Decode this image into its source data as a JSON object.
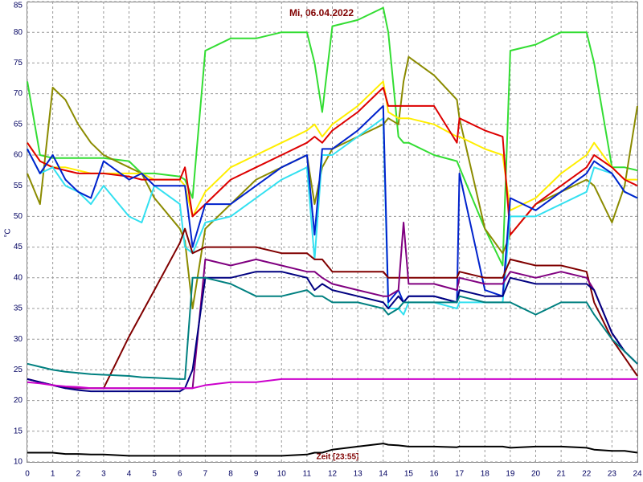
{
  "chart_data": {
    "type": "line",
    "title": "Mi, 06.04.2022",
    "y_label": "°C",
    "annotation": "Zeit [23:55]",
    "x": [
      0,
      0.5,
      1,
      1.5,
      2,
      2.5,
      3,
      4,
      4.5,
      5,
      6,
      6.2,
      6.5,
      7,
      8,
      9,
      10,
      11,
      11.3,
      11.6,
      12,
      13,
      14,
      14.2,
      14.6,
      14.8,
      15,
      16,
      16.9,
      17,
      18,
      18.7,
      19,
      20,
      21,
      22,
      22.3,
      23,
      23.5,
      24
    ],
    "xlim": [
      0,
      24
    ],
    "xticks": [
      0,
      1,
      2,
      3,
      4,
      5,
      6,
      7,
      8,
      9,
      10,
      11,
      12,
      13,
      14,
      15,
      16,
      17,
      18,
      19,
      20,
      21,
      22,
      23,
      24
    ],
    "ylim": [
      10,
      85
    ],
    "yticks": [
      10,
      15,
      20,
      25,
      30,
      35,
      40,
      45,
      50,
      55,
      60,
      65,
      70,
      75,
      80,
      85
    ],
    "grid": true,
    "series": [
      {
        "color": "#33dd33",
        "values": [
          72,
          60,
          59.5,
          59.5,
          59.5,
          59.5,
          59.5,
          59,
          57,
          57,
          56.5,
          56,
          53,
          77,
          79,
          79,
          80,
          80,
          75,
          67,
          81,
          82,
          84,
          80,
          63,
          62,
          62,
          60,
          59,
          58,
          48,
          42,
          77,
          78,
          80,
          80,
          75,
          58,
          58,
          57.5
        ]
      },
      {
        "color": "#8b8b00",
        "values": [
          57,
          52,
          71,
          69,
          65,
          62,
          60,
          58,
          57,
          53,
          48,
          46,
          35,
          48,
          52,
          56,
          58,
          60,
          52,
          58,
          61,
          63,
          65,
          66,
          65,
          72,
          76,
          73,
          69,
          66,
          48,
          44,
          47,
          52,
          54,
          56,
          55,
          49,
          55,
          68
        ]
      },
      {
        "color": "#ffee00",
        "values": [
          62,
          59,
          58,
          58,
          57.5,
          57,
          57,
          57,
          57,
          56,
          56,
          55,
          50,
          54,
          58,
          60,
          62,
          64,
          65,
          63,
          65,
          68,
          72,
          67,
          66,
          66,
          66,
          65,
          63,
          63,
          61,
          60,
          51,
          53,
          57,
          60,
          62,
          58,
          56,
          56
        ]
      },
      {
        "color": "#dd0000",
        "values": [
          62,
          59,
          58,
          57.5,
          57,
          57,
          57,
          56.5,
          56,
          56,
          56,
          58,
          50,
          52,
          56,
          58,
          60,
          62,
          63,
          62,
          64,
          67,
          71,
          68,
          68,
          68,
          68,
          68,
          62,
          66,
          64,
          63,
          47,
          52,
          55,
          58,
          60,
          58,
          56,
          55
        ]
      },
      {
        "color": "#33e0f0",
        "values": [
          61,
          57,
          58,
          55,
          54,
          52,
          55,
          50,
          49,
          55,
          52,
          45,
          44,
          49,
          50,
          53,
          56,
          58,
          43,
          60,
          60,
          63,
          66,
          35,
          35,
          34,
          36,
          36,
          35,
          36,
          36,
          36,
          50,
          50,
          52,
          54,
          58,
          57,
          54,
          53
        ]
      },
      {
        "color": "#0022cc",
        "values": [
          61,
          57,
          60,
          56,
          54,
          53,
          59,
          56,
          57,
          55,
          55,
          55,
          45,
          52,
          52,
          55,
          58,
          60,
          47,
          61,
          61,
          64,
          68,
          36,
          38,
          36,
          37,
          37,
          36,
          57,
          38,
          37,
          53,
          51,
          54,
          57,
          59,
          57,
          54,
          53
        ]
      },
      {
        "color": "#800000",
        "values": [
          23.5,
          23,
          22.5,
          22.2,
          22,
          22,
          22,
          30.4,
          34.2,
          38,
          45.7,
          48,
          44,
          45,
          45,
          45,
          44,
          44,
          43,
          43,
          41,
          41,
          41,
          40,
          40,
          40,
          40,
          40,
          40,
          41,
          40,
          40,
          43,
          42,
          42,
          41,
          36,
          30,
          27,
          24
        ]
      },
      {
        "color": "#800080",
        "values": [
          23.5,
          23,
          22.5,
          22,
          22,
          22,
          22,
          22,
          22,
          22,
          22,
          22,
          22,
          43,
          42,
          43,
          42,
          41,
          41,
          40,
          39,
          38,
          37,
          37,
          38,
          49,
          39,
          39,
          38,
          40,
          39,
          39,
          41,
          40,
          41,
          40,
          38,
          31,
          28,
          26
        ]
      },
      {
        "color": "#000080",
        "values": [
          23.5,
          23,
          22.5,
          22,
          21.7,
          21.5,
          21.5,
          21.5,
          21.5,
          21.5,
          21.5,
          22,
          25,
          40,
          40,
          41,
          41,
          40,
          38,
          39,
          38,
          37,
          36,
          35,
          37,
          36,
          37,
          37,
          36,
          38,
          37,
          37,
          40,
          39,
          39,
          39,
          38,
          31,
          28,
          26
        ]
      },
      {
        "color": "#008080",
        "values": [
          26,
          25.5,
          25,
          24.7,
          24.5,
          24.3,
          24.2,
          24,
          23.8,
          23.7,
          23.5,
          23.5,
          40,
          40,
          39,
          37,
          37,
          38,
          37,
          37,
          36,
          36,
          35,
          34,
          35,
          36,
          36,
          36,
          36,
          37,
          36,
          36,
          36,
          34,
          36,
          36,
          34,
          30,
          28,
          26
        ]
      },
      {
        "color": "#cc00cc",
        "values": [
          23,
          22.8,
          22.5,
          22.3,
          22.2,
          22,
          22,
          22,
          22,
          22,
          22,
          22,
          22,
          22.5,
          23,
          23,
          23.5,
          23.5,
          23.5,
          23.5,
          23.5,
          23.5,
          23.5,
          23.5,
          23.5,
          23.5,
          23.5,
          23.5,
          23.5,
          23.5,
          23.5,
          23.5,
          23.5,
          23.5,
          23.5,
          23.5,
          23.5,
          23.5,
          23.5,
          23.5
        ]
      },
      {
        "color": "#000000",
        "values": [
          11.5,
          11.5,
          11.5,
          11.3,
          11.3,
          11.2,
          11.2,
          11,
          11,
          11,
          11,
          11,
          11,
          11,
          11,
          11,
          11,
          11.2,
          11.5,
          11.5,
          12,
          12.5,
          13,
          12.8,
          12.7,
          12.6,
          12.5,
          12.5,
          12.4,
          12.5,
          12.5,
          12.5,
          12.3,
          12.5,
          12.5,
          12.3,
          12,
          11.8,
          11.8,
          11.5
        ]
      }
    ]
  }
}
